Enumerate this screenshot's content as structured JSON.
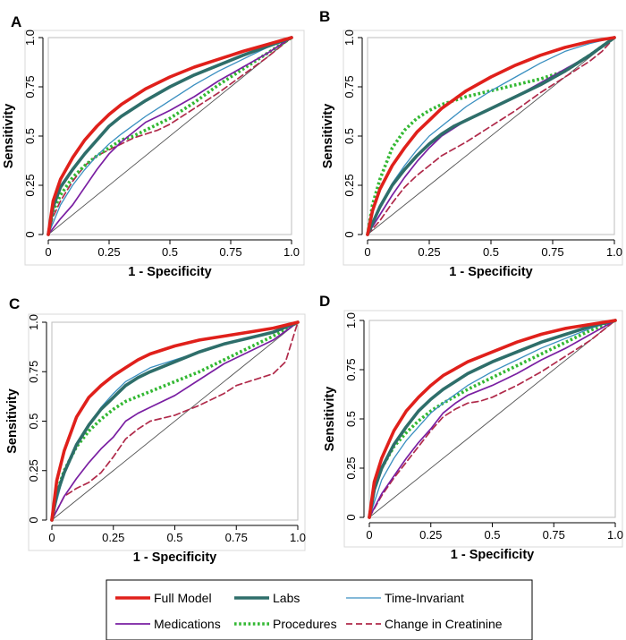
{
  "figure": {
    "legend": {
      "entries": [
        {
          "label": "Full Model",
          "color": "#e0201b",
          "style": "solid",
          "weight": "thick"
        },
        {
          "label": "Labs",
          "color": "#2e6e6a",
          "style": "solid",
          "weight": "thick"
        },
        {
          "label": "Time-Invariant",
          "color": "#3a8fc0",
          "style": "solid",
          "weight": "thin"
        },
        {
          "label": "Medications",
          "color": "#7a1fa2",
          "style": "solid",
          "weight": "medium"
        },
        {
          "label": "Procedures",
          "color": "#33b833",
          "style": "dotted",
          "weight": "thick"
        },
        {
          "label": "Change in Creatinine",
          "color": "#b02a4a",
          "style": "dashed",
          "weight": "medium"
        }
      ]
    }
  },
  "chart_data": [
    {
      "type": "line",
      "panel_label": "A",
      "xlabel": "1 - Specificity",
      "ylabel": "Sensitivity",
      "xlim": [
        0,
        1
      ],
      "ylim": [
        0,
        1
      ],
      "x_ticks": [
        "0",
        "0.25",
        "0.5",
        "0.75",
        "1.0"
      ],
      "y_ticks": [
        "0",
        "0.25",
        "0.5",
        "0.75",
        "1.0"
      ],
      "reference_line": {
        "x": [
          0,
          1
        ],
        "y": [
          0,
          1
        ]
      },
      "series": [
        {
          "name": "Full Model",
          "x": [
            0,
            0.02,
            0.05,
            0.1,
            0.15,
            0.2,
            0.25,
            0.3,
            0.4,
            0.5,
            0.6,
            0.7,
            0.8,
            0.9,
            1.0
          ],
          "y": [
            0,
            0.17,
            0.28,
            0.39,
            0.48,
            0.55,
            0.61,
            0.66,
            0.74,
            0.8,
            0.85,
            0.89,
            0.93,
            0.965,
            1.0
          ]
        },
        {
          "name": "Labs",
          "x": [
            0,
            0.02,
            0.05,
            0.1,
            0.15,
            0.2,
            0.25,
            0.3,
            0.4,
            0.5,
            0.6,
            0.7,
            0.8,
            0.9,
            1.0
          ],
          "y": [
            0,
            0.14,
            0.24,
            0.33,
            0.41,
            0.48,
            0.55,
            0.6,
            0.68,
            0.75,
            0.81,
            0.86,
            0.91,
            0.955,
            1.0
          ]
        },
        {
          "name": "Time-Invariant",
          "x": [
            0,
            0.05,
            0.1,
            0.15,
            0.2,
            0.25,
            0.3,
            0.4,
            0.5,
            0.6,
            0.7,
            0.8,
            0.9,
            1.0
          ],
          "y": [
            0,
            0.15,
            0.25,
            0.33,
            0.4,
            0.46,
            0.51,
            0.6,
            0.68,
            0.76,
            0.83,
            0.89,
            0.95,
            1.0
          ]
        },
        {
          "name": "Medications",
          "x": [
            0,
            0.05,
            0.1,
            0.15,
            0.2,
            0.25,
            0.3,
            0.35,
            0.4,
            0.5,
            0.6,
            0.7,
            0.8,
            0.9,
            1.0
          ],
          "y": [
            0,
            0.08,
            0.15,
            0.24,
            0.33,
            0.41,
            0.47,
            0.52,
            0.57,
            0.63,
            0.7,
            0.78,
            0.85,
            0.92,
            1.0
          ]
        },
        {
          "name": "Procedures",
          "x": [
            0,
            0.02,
            0.05,
            0.1,
            0.15,
            0.2,
            0.25,
            0.3,
            0.35,
            0.4,
            0.5,
            0.6,
            0.7,
            0.8,
            0.9,
            1.0
          ],
          "y": [
            0,
            0.12,
            0.2,
            0.29,
            0.35,
            0.4,
            0.44,
            0.48,
            0.5,
            0.53,
            0.59,
            0.67,
            0.76,
            0.84,
            0.92,
            1.0
          ]
        },
        {
          "name": "Change in Creatinine",
          "x": [
            0,
            0.02,
            0.05,
            0.1,
            0.15,
            0.2,
            0.25,
            0.3,
            0.35,
            0.4,
            0.45,
            0.5,
            0.6,
            0.7,
            0.8,
            0.9,
            1.0
          ],
          "y": [
            0,
            0.09,
            0.17,
            0.27,
            0.35,
            0.4,
            0.43,
            0.46,
            0.49,
            0.51,
            0.53,
            0.56,
            0.64,
            0.72,
            0.81,
            0.9,
            1.0
          ]
        }
      ]
    },
    {
      "type": "line",
      "panel_label": "B",
      "xlabel": "1 - Specificity",
      "ylabel": "Sensitivity",
      "xlim": [
        0,
        1
      ],
      "ylim": [
        0,
        1
      ],
      "x_ticks": [
        "0",
        "0.25",
        "0.5",
        "0.75",
        "1.0"
      ],
      "y_ticks": [
        "0",
        "0.25",
        "0.5",
        "0.75",
        "1.0"
      ],
      "reference_line": {
        "x": [
          0,
          1
        ],
        "y": [
          0,
          1
        ]
      },
      "series": [
        {
          "name": "Full Model",
          "x": [
            0,
            0.02,
            0.05,
            0.1,
            0.15,
            0.2,
            0.25,
            0.3,
            0.4,
            0.5,
            0.6,
            0.7,
            0.8,
            0.9,
            1.0
          ],
          "y": [
            0,
            0.12,
            0.23,
            0.35,
            0.44,
            0.52,
            0.58,
            0.64,
            0.73,
            0.8,
            0.86,
            0.91,
            0.95,
            0.98,
            1.0
          ]
        },
        {
          "name": "Labs",
          "x": [
            0,
            0.05,
            0.1,
            0.15,
            0.2,
            0.25,
            0.3,
            0.35,
            0.4,
            0.5,
            0.6,
            0.7,
            0.8,
            0.9,
            1.0
          ],
          "y": [
            0,
            0.14,
            0.25,
            0.33,
            0.4,
            0.46,
            0.51,
            0.55,
            0.58,
            0.64,
            0.7,
            0.76,
            0.83,
            0.91,
            1.0
          ]
        },
        {
          "name": "Time-Invariant",
          "x": [
            0,
            0.05,
            0.1,
            0.15,
            0.2,
            0.25,
            0.3,
            0.4,
            0.5,
            0.6,
            0.7,
            0.8,
            0.9,
            1.0
          ],
          "y": [
            0,
            0.14,
            0.26,
            0.35,
            0.43,
            0.5,
            0.55,
            0.65,
            0.73,
            0.8,
            0.87,
            0.93,
            0.97,
            1.0
          ]
        },
        {
          "name": "Medications",
          "x": [
            0,
            0.05,
            0.1,
            0.15,
            0.2,
            0.25,
            0.3,
            0.35,
            0.4,
            0.5,
            0.6,
            0.7,
            0.8,
            0.9,
            1.0
          ],
          "y": [
            0,
            0.1,
            0.2,
            0.29,
            0.37,
            0.44,
            0.5,
            0.54,
            0.58,
            0.64,
            0.7,
            0.77,
            0.84,
            0.91,
            1.0
          ]
        },
        {
          "name": "Procedures",
          "x": [
            0,
            0.02,
            0.05,
            0.1,
            0.15,
            0.2,
            0.25,
            0.3,
            0.4,
            0.5,
            0.6,
            0.7,
            0.8,
            0.9,
            1.0
          ],
          "y": [
            0,
            0.15,
            0.28,
            0.44,
            0.53,
            0.59,
            0.63,
            0.66,
            0.7,
            0.73,
            0.76,
            0.79,
            0.83,
            0.91,
            1.0
          ]
        },
        {
          "name": "Change in Creatinine",
          "x": [
            0,
            0.05,
            0.1,
            0.15,
            0.2,
            0.25,
            0.3,
            0.4,
            0.5,
            0.6,
            0.7,
            0.8,
            0.9,
            0.95,
            1.0
          ],
          "y": [
            0,
            0.07,
            0.16,
            0.24,
            0.3,
            0.35,
            0.4,
            0.47,
            0.55,
            0.63,
            0.72,
            0.8,
            0.88,
            0.93,
            1.0
          ]
        }
      ]
    },
    {
      "type": "line",
      "panel_label": "C",
      "xlabel": "1 - Specificity",
      "ylabel": "Sensitivity",
      "xlim": [
        0,
        1
      ],
      "ylim": [
        0,
        1
      ],
      "x_ticks": [
        "0",
        "0.25",
        "0.5",
        "0.75",
        "1.0"
      ],
      "y_ticks": [
        "0",
        "0.25",
        "0.5",
        "0.75",
        "1.0"
      ],
      "reference_line": {
        "x": [
          0,
          1
        ],
        "y": [
          0,
          1
        ]
      },
      "series": [
        {
          "name": "Full Model",
          "x": [
            0,
            0.02,
            0.05,
            0.1,
            0.15,
            0.2,
            0.25,
            0.3,
            0.35,
            0.4,
            0.5,
            0.6,
            0.7,
            0.8,
            0.9,
            1.0
          ],
          "y": [
            0,
            0.2,
            0.35,
            0.52,
            0.62,
            0.68,
            0.73,
            0.77,
            0.81,
            0.84,
            0.88,
            0.91,
            0.93,
            0.95,
            0.97,
            1.0
          ]
        },
        {
          "name": "Labs",
          "x": [
            0,
            0.02,
            0.05,
            0.1,
            0.15,
            0.2,
            0.25,
            0.3,
            0.35,
            0.4,
            0.5,
            0.6,
            0.7,
            0.8,
            0.9,
            1.0
          ],
          "y": [
            0,
            0.13,
            0.24,
            0.38,
            0.48,
            0.56,
            0.62,
            0.68,
            0.72,
            0.75,
            0.8,
            0.85,
            0.89,
            0.92,
            0.95,
            1.0
          ]
        },
        {
          "name": "Time-Invariant",
          "x": [
            0,
            0.05,
            0.1,
            0.15,
            0.2,
            0.25,
            0.3,
            0.4,
            0.5,
            0.6,
            0.7,
            0.8,
            0.9,
            1.0
          ],
          "y": [
            0,
            0.24,
            0.38,
            0.48,
            0.57,
            0.64,
            0.7,
            0.77,
            0.81,
            0.85,
            0.89,
            0.92,
            0.95,
            1.0
          ]
        },
        {
          "name": "Medications",
          "x": [
            0,
            0.05,
            0.1,
            0.15,
            0.2,
            0.25,
            0.3,
            0.35,
            0.4,
            0.5,
            0.6,
            0.7,
            0.8,
            0.9,
            1.0
          ],
          "y": [
            0,
            0.12,
            0.21,
            0.29,
            0.36,
            0.42,
            0.5,
            0.54,
            0.57,
            0.63,
            0.71,
            0.79,
            0.85,
            0.91,
            1.0
          ]
        },
        {
          "name": "Procedures",
          "x": [
            0,
            0.02,
            0.05,
            0.1,
            0.15,
            0.2,
            0.25,
            0.3,
            0.4,
            0.5,
            0.6,
            0.7,
            0.8,
            0.9,
            1.0
          ],
          "y": [
            0,
            0.14,
            0.25,
            0.37,
            0.45,
            0.51,
            0.56,
            0.6,
            0.65,
            0.7,
            0.75,
            0.81,
            0.87,
            0.93,
            1.0
          ]
        },
        {
          "name": "Change in Creatinine",
          "x": [
            0,
            0.05,
            0.1,
            0.15,
            0.2,
            0.25,
            0.3,
            0.35,
            0.4,
            0.5,
            0.6,
            0.7,
            0.75,
            0.8,
            0.9,
            0.95,
            1.0
          ],
          "y": [
            0,
            0.12,
            0.16,
            0.19,
            0.24,
            0.32,
            0.41,
            0.46,
            0.5,
            0.53,
            0.58,
            0.64,
            0.68,
            0.7,
            0.74,
            0.8,
            1.0
          ]
        }
      ]
    },
    {
      "type": "line",
      "panel_label": "D",
      "xlabel": "1 - Specificity",
      "ylabel": "Sensitivity",
      "xlim": [
        0,
        1
      ],
      "ylim": [
        0,
        1
      ],
      "x_ticks": [
        "0",
        "0.25",
        "0.5",
        "0.75",
        "1.0"
      ],
      "y_ticks": [
        "0",
        "0.25",
        "0.5",
        "0.75",
        "1.0"
      ],
      "reference_line": {
        "x": [
          0,
          1
        ],
        "y": [
          0,
          1
        ]
      },
      "series": [
        {
          "name": "Full Model",
          "x": [
            0,
            0.02,
            0.05,
            0.1,
            0.15,
            0.2,
            0.25,
            0.3,
            0.4,
            0.5,
            0.6,
            0.7,
            0.8,
            0.9,
            1.0
          ],
          "y": [
            0,
            0.18,
            0.3,
            0.44,
            0.54,
            0.61,
            0.67,
            0.72,
            0.79,
            0.84,
            0.89,
            0.93,
            0.96,
            0.98,
            1.0
          ]
        },
        {
          "name": "Labs",
          "x": [
            0,
            0.02,
            0.05,
            0.1,
            0.15,
            0.2,
            0.25,
            0.3,
            0.4,
            0.5,
            0.6,
            0.7,
            0.8,
            0.9,
            1.0
          ],
          "y": [
            0,
            0.14,
            0.25,
            0.37,
            0.46,
            0.54,
            0.6,
            0.65,
            0.73,
            0.79,
            0.84,
            0.89,
            0.93,
            0.97,
            1.0
          ]
        },
        {
          "name": "Time-Invariant",
          "x": [
            0,
            0.05,
            0.1,
            0.15,
            0.2,
            0.25,
            0.3,
            0.4,
            0.5,
            0.6,
            0.7,
            0.8,
            0.9,
            1.0
          ],
          "y": [
            0,
            0.19,
            0.3,
            0.39,
            0.46,
            0.53,
            0.58,
            0.67,
            0.74,
            0.8,
            0.86,
            0.91,
            0.96,
            1.0
          ]
        },
        {
          "name": "Medications",
          "x": [
            0,
            0.05,
            0.1,
            0.15,
            0.2,
            0.25,
            0.3,
            0.35,
            0.4,
            0.5,
            0.6,
            0.7,
            0.8,
            0.9,
            1.0
          ],
          "y": [
            0,
            0.12,
            0.21,
            0.3,
            0.38,
            0.45,
            0.53,
            0.58,
            0.62,
            0.67,
            0.73,
            0.8,
            0.86,
            0.93,
            1.0
          ]
        },
        {
          "name": "Procedures",
          "x": [
            0,
            0.02,
            0.05,
            0.1,
            0.15,
            0.2,
            0.25,
            0.3,
            0.4,
            0.5,
            0.6,
            0.7,
            0.8,
            0.9,
            1.0
          ],
          "y": [
            0,
            0.15,
            0.25,
            0.36,
            0.43,
            0.49,
            0.54,
            0.58,
            0.65,
            0.71,
            0.77,
            0.83,
            0.89,
            0.95,
            1.0
          ]
        },
        {
          "name": "Change in Creatinine",
          "x": [
            0,
            0.05,
            0.1,
            0.15,
            0.2,
            0.25,
            0.3,
            0.35,
            0.4,
            0.45,
            0.5,
            0.6,
            0.7,
            0.8,
            0.9,
            1.0
          ],
          "y": [
            0,
            0.11,
            0.2,
            0.28,
            0.36,
            0.44,
            0.51,
            0.55,
            0.58,
            0.59,
            0.61,
            0.67,
            0.74,
            0.82,
            0.9,
            1.0
          ]
        }
      ]
    }
  ]
}
